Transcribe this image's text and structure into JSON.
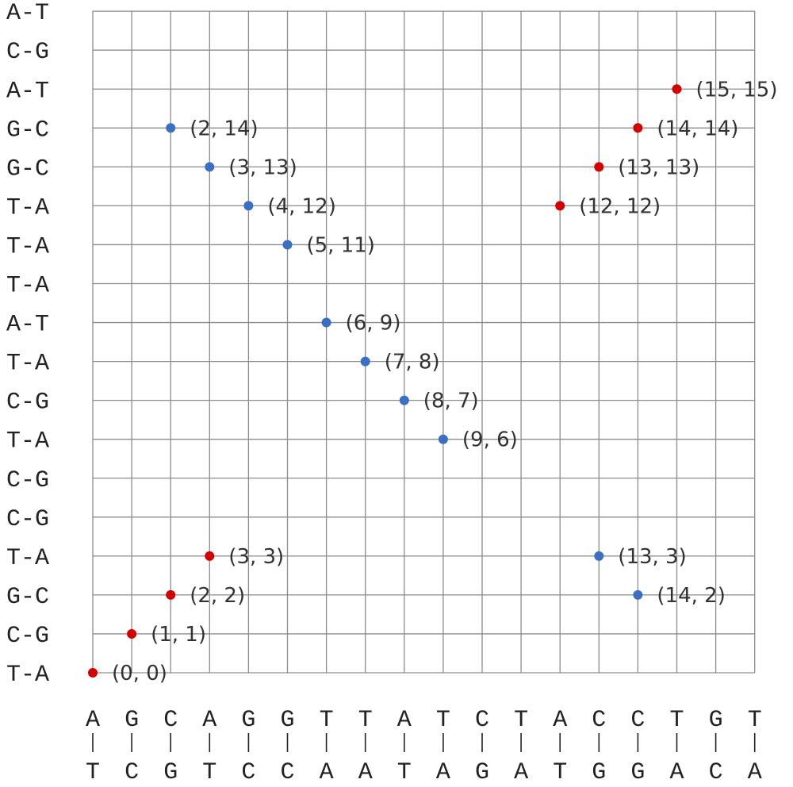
{
  "chart_data": {
    "type": "scatter",
    "grid": true,
    "x_axis": {
      "top": [
        "A",
        "G",
        "C",
        "A",
        "G",
        "G",
        "T",
        "T",
        "A",
        "T",
        "C",
        "T",
        "A",
        "C",
        "C",
        "T",
        "G",
        "T"
      ],
      "bottom": [
        "T",
        "C",
        "G",
        "T",
        "C",
        "C",
        "A",
        "A",
        "T",
        "A",
        "G",
        "A",
        "T",
        "G",
        "G",
        "A",
        "C",
        "A"
      ],
      "connector": "|"
    },
    "y_axis": {
      "labels_bottom_to_top": [
        "T-A",
        "C-G",
        "G-C",
        "T-A",
        "C-G",
        "C-G",
        "T-A",
        "C-G",
        "T-A",
        "A-T",
        "T-A",
        "T-A",
        "T-A",
        "G-C",
        "G-C",
        "A-T",
        "C-G",
        "A-T"
      ]
    },
    "series": [
      {
        "color": "#d40000",
        "points": [
          {
            "x": 0,
            "y": 0,
            "label": "(0, 0)"
          },
          {
            "x": 1,
            "y": 1,
            "label": "(1, 1)"
          },
          {
            "x": 2,
            "y": 2,
            "label": "(2, 2)"
          },
          {
            "x": 3,
            "y": 3,
            "label": "(3, 3)"
          },
          {
            "x": 12,
            "y": 12,
            "label": "(12, 12)"
          },
          {
            "x": 13,
            "y": 13,
            "label": "(13, 13)"
          },
          {
            "x": 14,
            "y": 14,
            "label": "(14, 14)"
          },
          {
            "x": 15,
            "y": 15,
            "label": "(15, 15)"
          }
        ]
      },
      {
        "color": "#3a6fc4",
        "points": [
          {
            "x": 2,
            "y": 14,
            "label": "(2, 14)"
          },
          {
            "x": 3,
            "y": 13,
            "label": "(3, 13)"
          },
          {
            "x": 4,
            "y": 12,
            "label": "(4, 12)"
          },
          {
            "x": 5,
            "y": 11,
            "label": "(5, 11)"
          },
          {
            "x": 6,
            "y": 9,
            "label": "(6, 9)"
          },
          {
            "x": 7,
            "y": 8,
            "label": "(7, 8)"
          },
          {
            "x": 8,
            "y": 7,
            "label": "(8, 7)"
          },
          {
            "x": 9,
            "y": 6,
            "label": "(9, 6)"
          },
          {
            "x": 13,
            "y": 3,
            "label": "(13, 3)"
          },
          {
            "x": 14,
            "y": 2,
            "label": "(14, 2)"
          }
        ]
      }
    ]
  }
}
